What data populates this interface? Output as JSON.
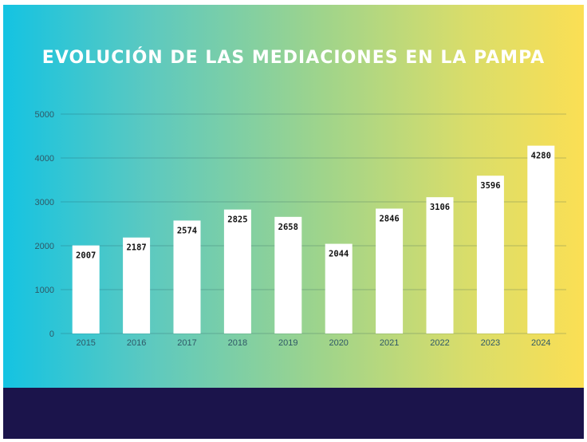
{
  "colors": {
    "gradient_start": "#14c3e2",
    "gradient_end": "#fbdf54",
    "footer": "#1b144b",
    "bar": "#ffffff",
    "title": "#ffffff"
  },
  "chart_data": {
    "type": "bar",
    "title": "EVOLUCIÓN DE LAS MEDIACIONES EN LA PAMPA",
    "xlabel": "",
    "ylabel": "",
    "categories": [
      "2015",
      "2016",
      "2017",
      "2018",
      "2019",
      "2020",
      "2021",
      "2022",
      "2023",
      "2024"
    ],
    "values": [
      2007,
      2187,
      2574,
      2825,
      2658,
      2044,
      2846,
      3106,
      3596,
      4280
    ],
    "data_labels": [
      "2007",
      "2187",
      "2574",
      "2825",
      "2658",
      "2044",
      "2846",
      "3106",
      "3596",
      "4280"
    ],
    "ylim": [
      0,
      5000
    ],
    "yticks": [
      0,
      1000,
      2000,
      3000,
      4000,
      5000
    ],
    "ytick_labels": [
      "0",
      "1000",
      "2000",
      "3000",
      "4000",
      "5000"
    ],
    "grid": true,
    "legend": "none"
  }
}
